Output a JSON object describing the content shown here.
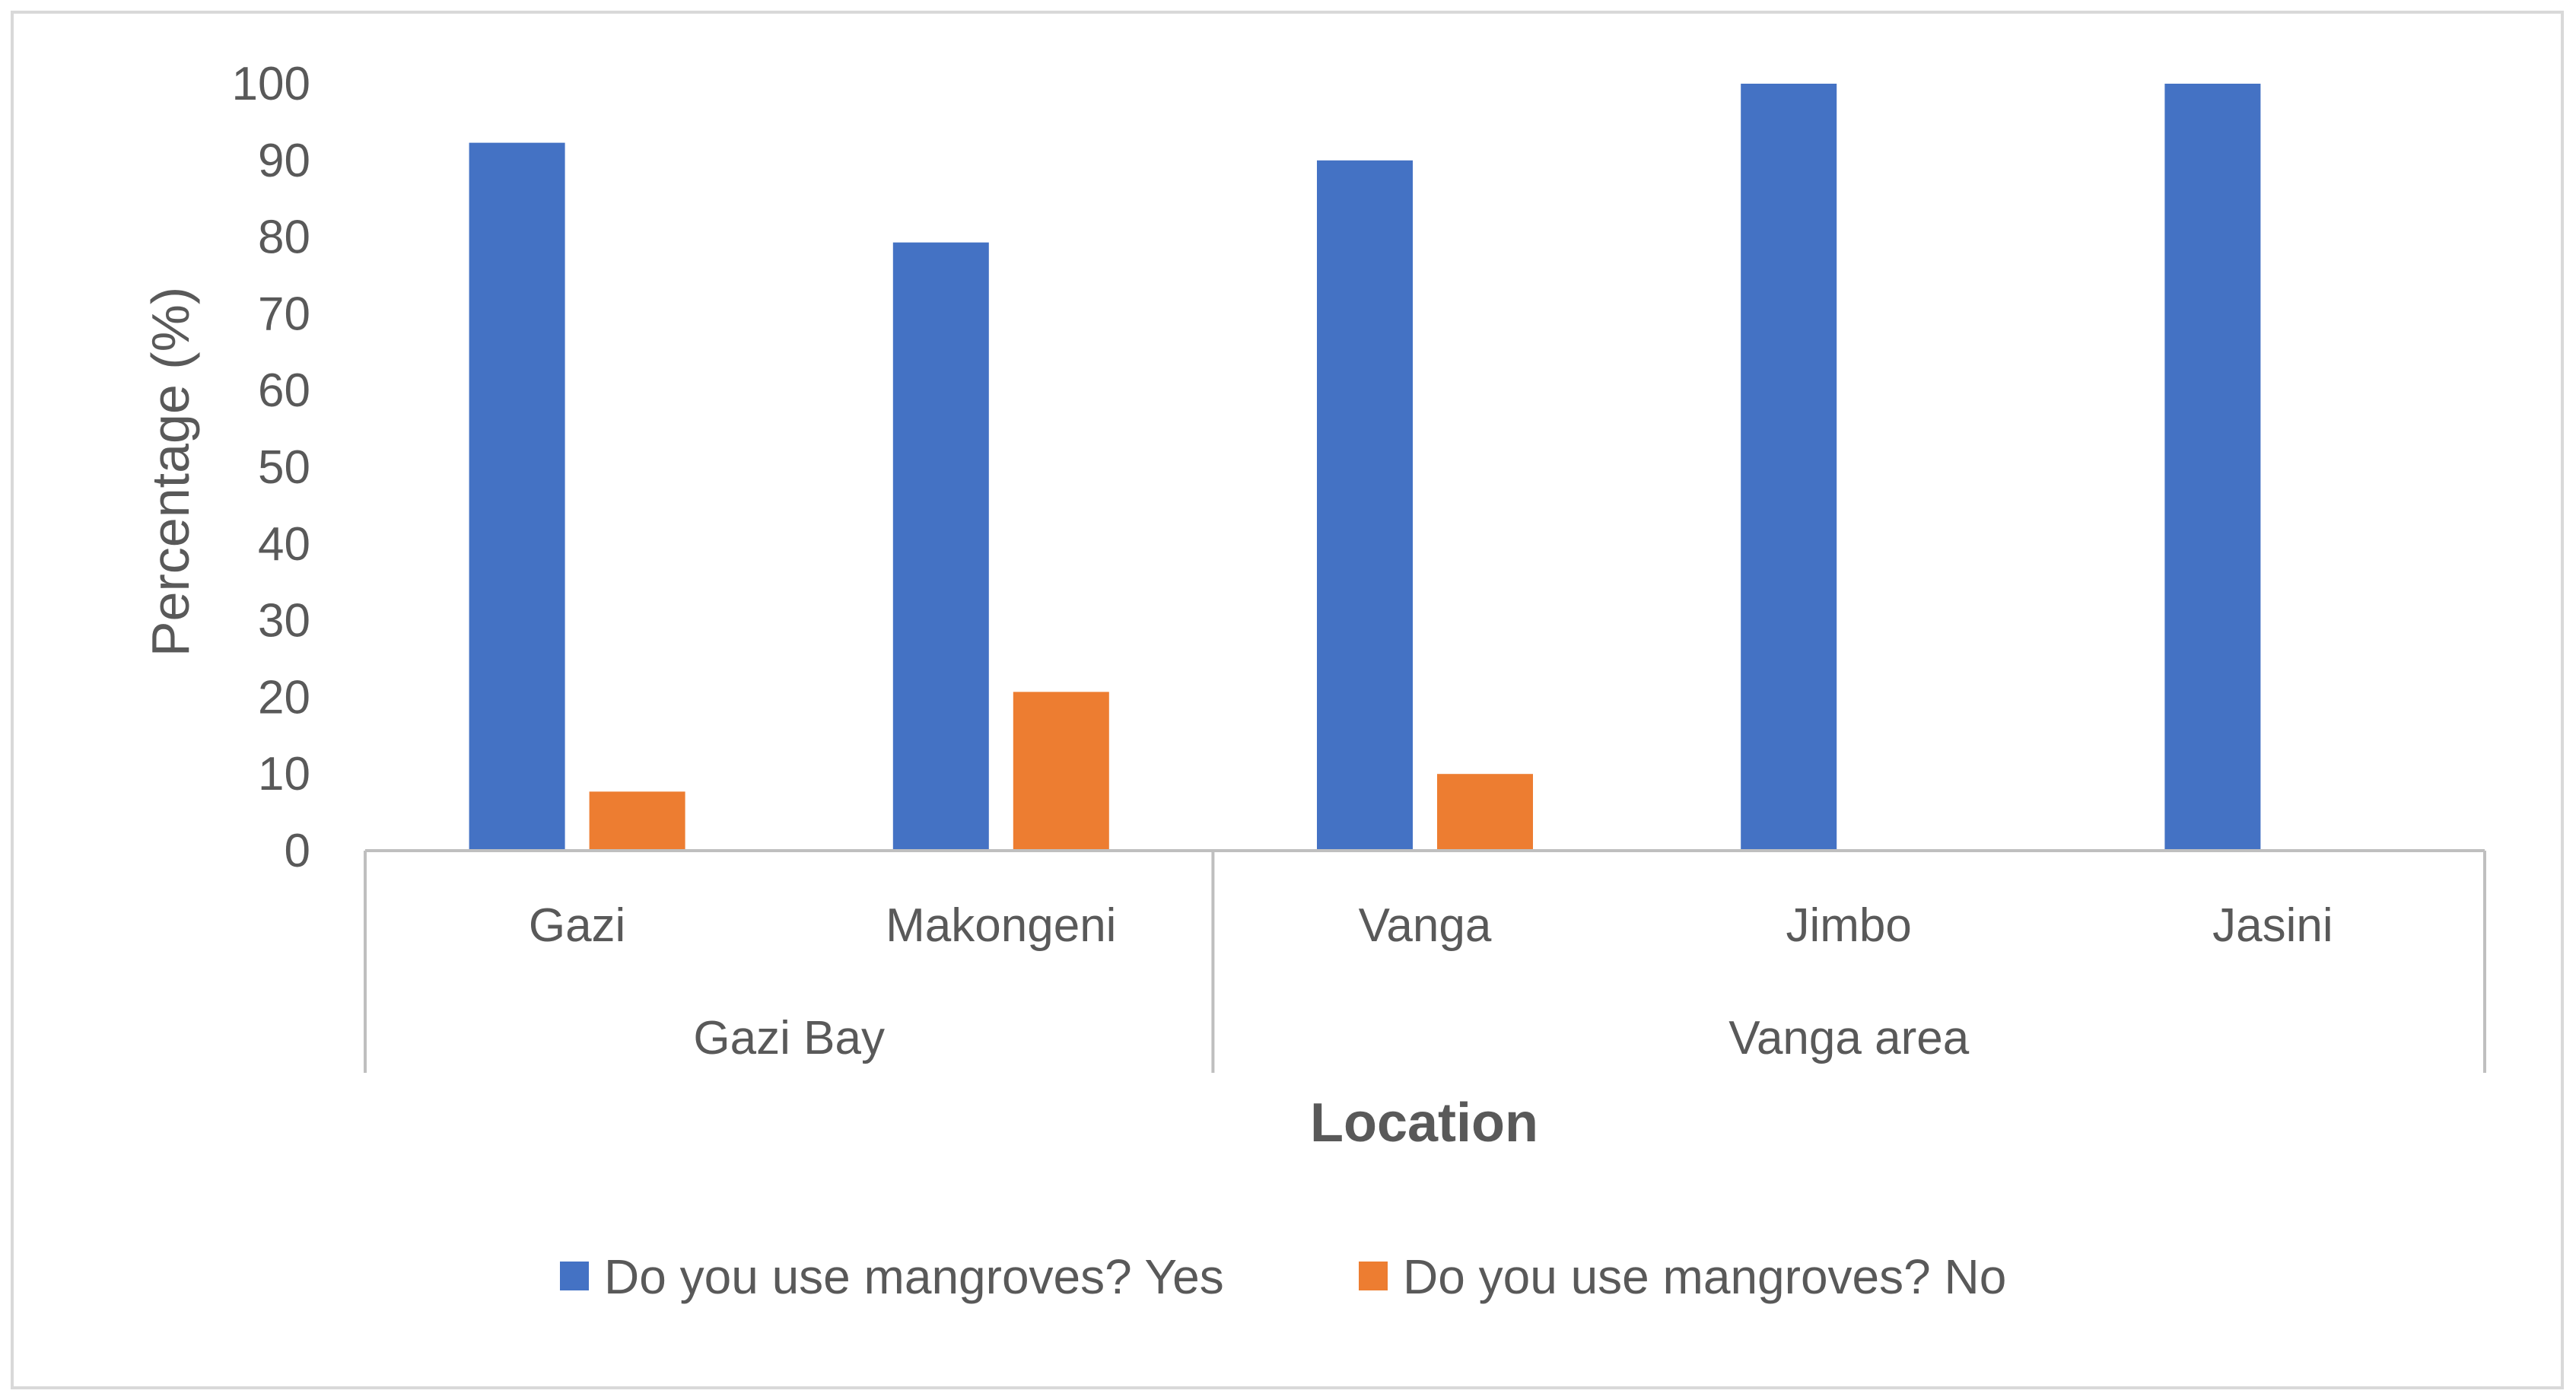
{
  "chart_data": {
    "type": "bar",
    "title": "",
    "xlabel": "Location",
    "ylabel": "Percentage (%)",
    "ylim": [
      0,
      100
    ],
    "yticks": [
      0,
      10,
      20,
      30,
      40,
      50,
      60,
      70,
      80,
      90,
      100
    ],
    "grid": false,
    "legend_position": "bottom",
    "categories": [
      "Gazi",
      "Makongeni",
      "Vanga",
      "Jimbo",
      "Jasini"
    ],
    "groups": [
      {
        "label": "Gazi Bay",
        "categories": [
          "Gazi",
          "Makongeni"
        ]
      },
      {
        "label": "Vanga area",
        "categories": [
          "Vanga",
          "Jimbo",
          "Jasini"
        ]
      }
    ],
    "series": [
      {
        "name": "Do you use mangroves? Yes",
        "color": "#4472c4",
        "values": [
          92.3,
          79.3,
          90,
          100,
          100
        ]
      },
      {
        "name": "Do you use mangroves? No",
        "color": "#ed7d31",
        "values": [
          7.7,
          20.7,
          10,
          0,
          0
        ]
      }
    ]
  }
}
